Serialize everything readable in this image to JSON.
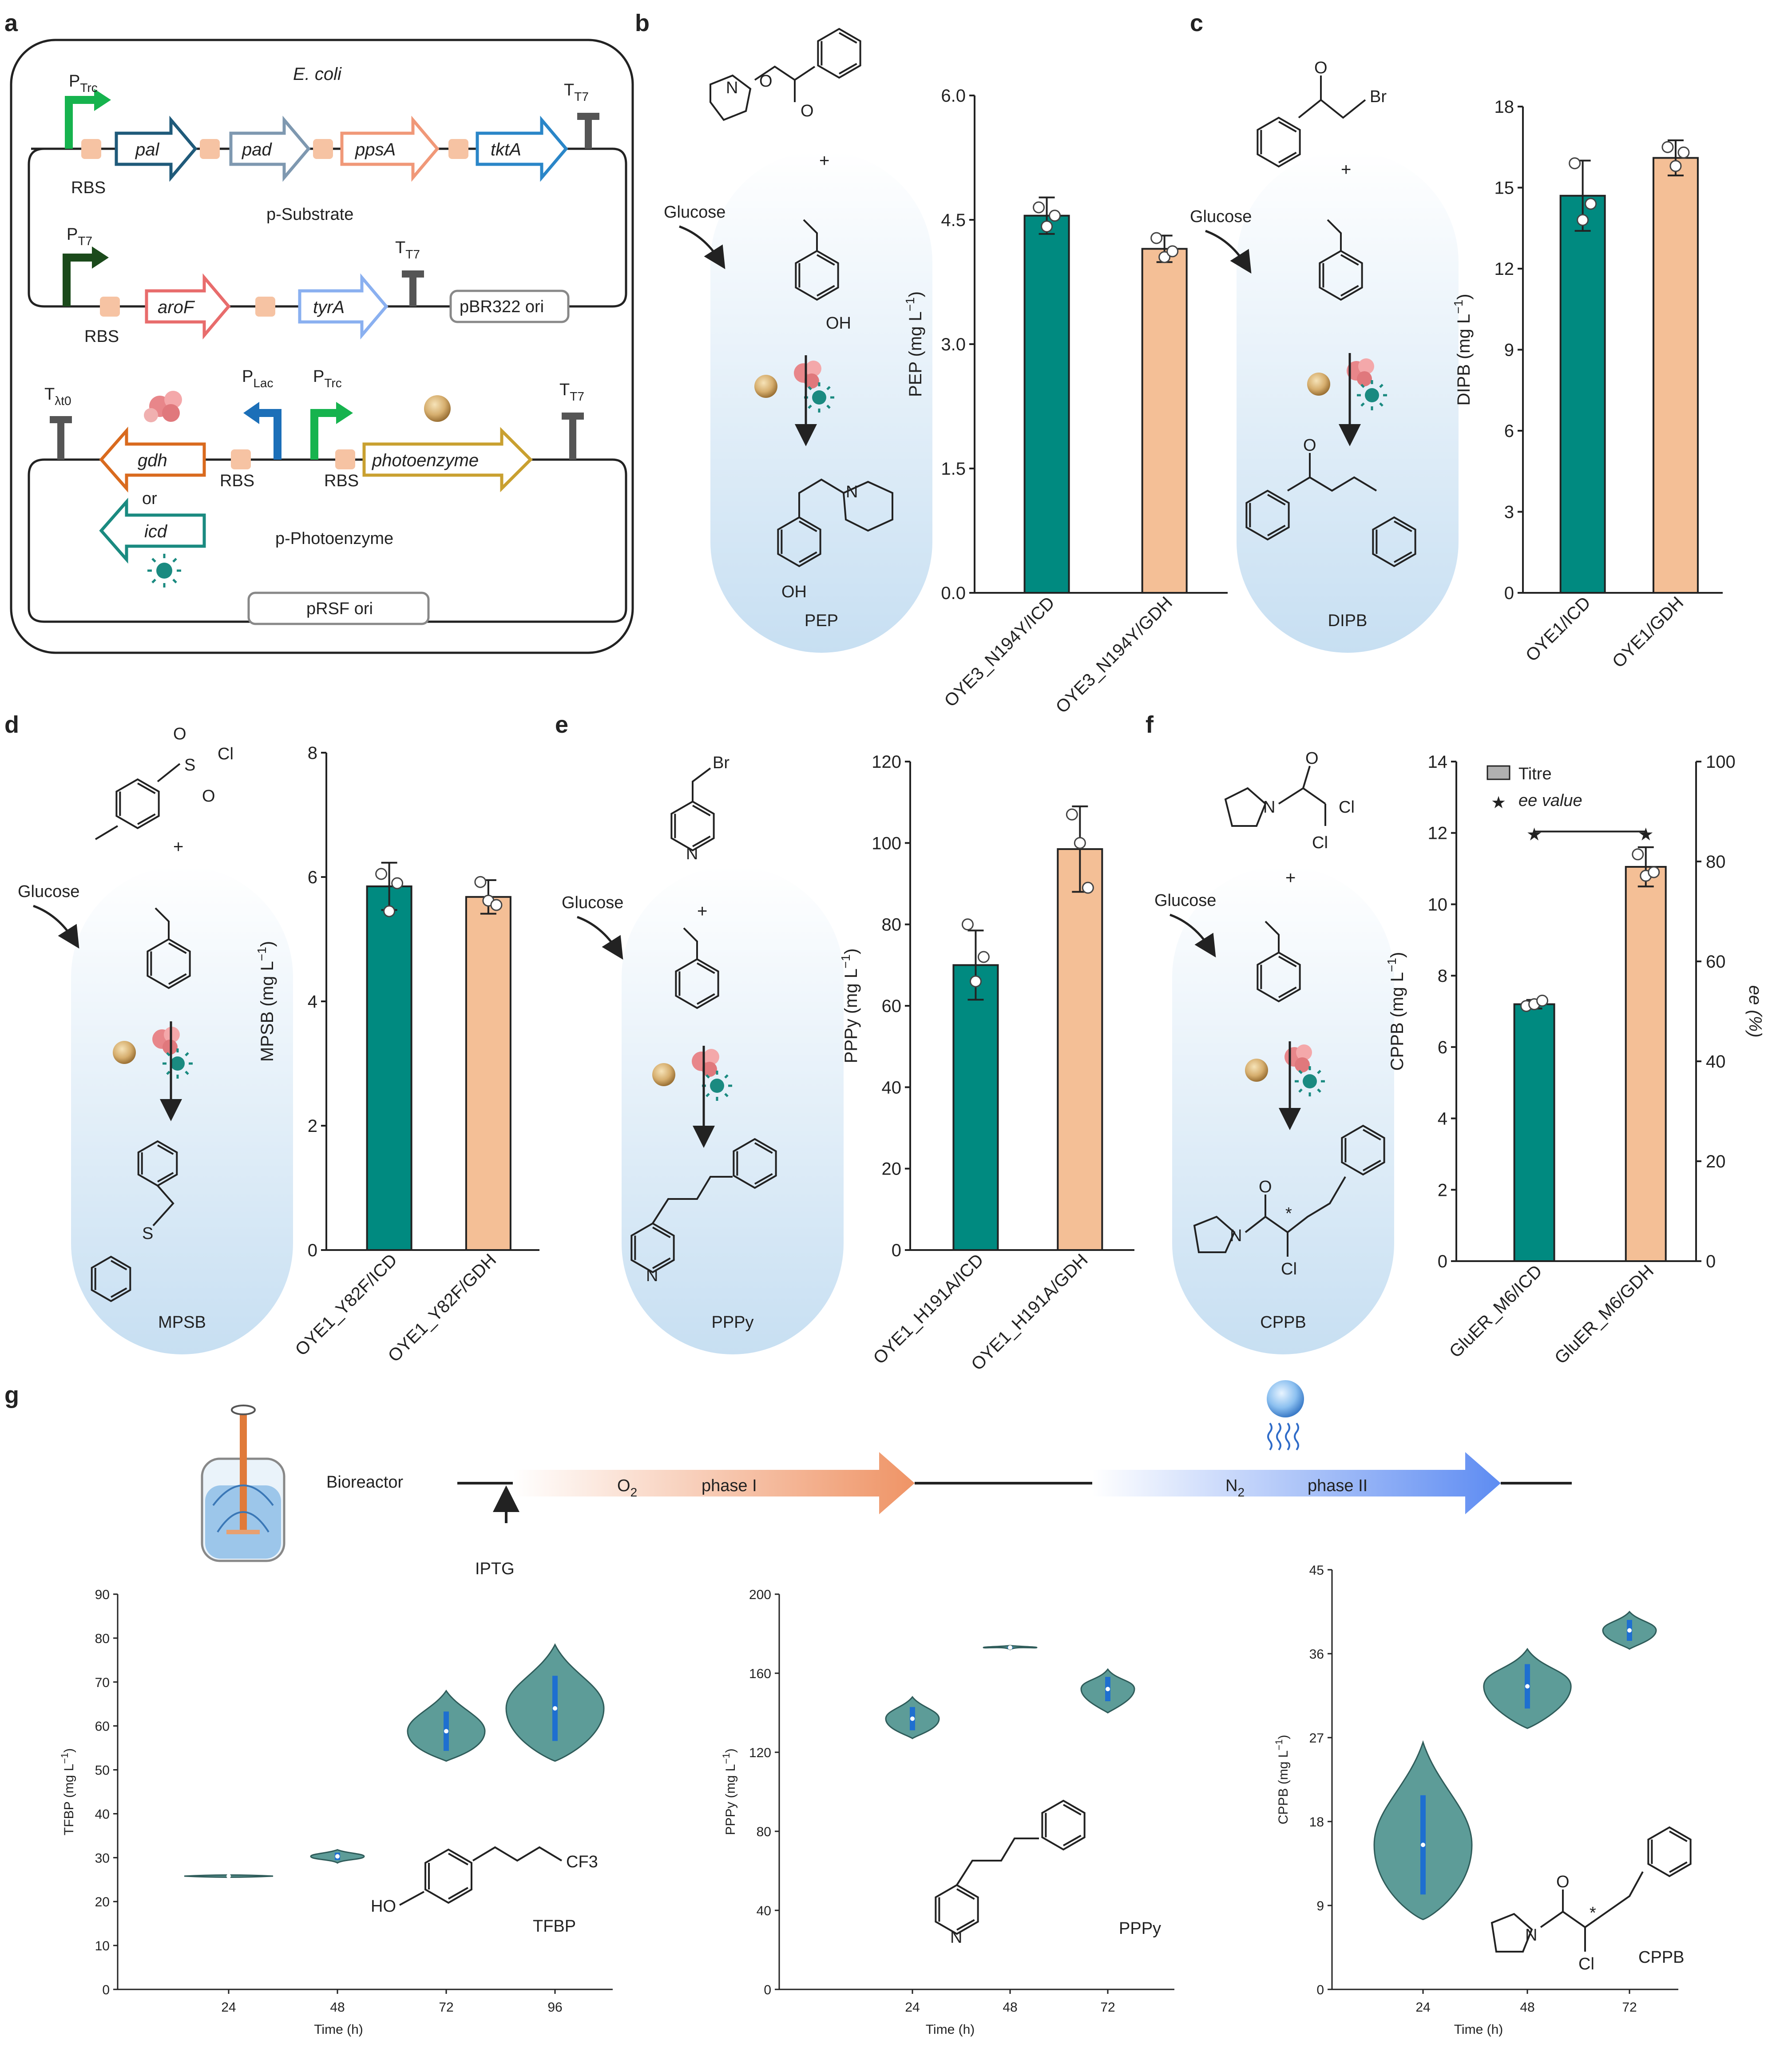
{
  "panel_labels": [
    "a",
    "b",
    "c",
    "d",
    "e",
    "f",
    "g"
  ],
  "panel_a": {
    "host": "E. coli",
    "promoters": {
      "trc": "P",
      "trc_sub": "Trc",
      "t7": "P",
      "t7_sub": "T7",
      "lac": "P",
      "lac_sub": "Lac"
    },
    "terminators": {
      "t7": "T",
      "t7_sub": "T7",
      "lambda": "T",
      "lambda_sub": "λt0"
    },
    "rbs": "RBS",
    "plasmid1": {
      "name": "p-Substrate",
      "genes_row1": [
        "pal",
        "pad",
        "ppsA",
        "tktA"
      ],
      "genes_row2": [
        "aroF",
        "tyrA"
      ],
      "ori": "pBR322 ori"
    },
    "plasmid2": {
      "name": "p-Photoenzyme",
      "genes": [
        "gdh",
        "photoenzyme",
        "icd"
      ],
      "or_text": "or",
      "ori": "pRSF ori"
    }
  },
  "common": {
    "glucose": "Glucose",
    "plus": "+",
    "ylabel_unit": "(mg L",
    "ylabel_exp": "−1",
    "ylabel_close": ")"
  },
  "colors": {
    "teal": "#008A80",
    "peach": "#F4BF96",
    "violin": "#5D9C98",
    "enzyme_gold": "#C89A52",
    "enzyme_red": "#E8868A",
    "burgundy": "#6D1A1F"
  },
  "chart_data": [
    {
      "id": "b",
      "type": "bar",
      "ylabel": "PEP",
      "product": "PEP",
      "categories": [
        "OYE3_N194Y/ICD",
        "OYE3_N194Y/GDH"
      ],
      "values": [
        4.55,
        4.15
      ],
      "errors": [
        0.22,
        0.16
      ],
      "points": [
        [
          4.65,
          4.42,
          4.55
        ],
        [
          4.28,
          4.05,
          4.12
        ]
      ],
      "ylim": [
        0,
        6
      ],
      "yticks": [
        "0.0",
        "1.5",
        "3.0",
        "4.5",
        "6.0"
      ]
    },
    {
      "id": "c",
      "type": "bar",
      "ylabel": "DIPB",
      "product": "DIPB",
      "substrate_atom": "Br",
      "categories": [
        "OYE1/ICD",
        "OYE1/GDH"
      ],
      "values": [
        14.7,
        16.1
      ],
      "errors": [
        1.3,
        0.65
      ],
      "points": [
        [
          15.9,
          13.8,
          14.4
        ],
        [
          16.5,
          15.8,
          16.3
        ]
      ],
      "ylim": [
        0,
        18
      ],
      "yticks": [
        "0",
        "3",
        "6",
        "9",
        "12",
        "15",
        "18"
      ]
    },
    {
      "id": "d",
      "type": "bar",
      "ylabel": "MPSB",
      "product": "MPSB",
      "substrate_atoms": [
        "S",
        "O",
        "O",
        "Cl"
      ],
      "categories": [
        "OYE1_Y82F/ICD",
        "OYE1_Y82F/GDH"
      ],
      "values": [
        5.85,
        5.68
      ],
      "errors": [
        0.38,
        0.27
      ],
      "points": [
        [
          6.05,
          5.45,
          5.9
        ],
        [
          5.92,
          5.62,
          5.55
        ]
      ],
      "ylim": [
        0,
        8
      ],
      "yticks": [
        "0",
        "2",
        "4",
        "6",
        "8"
      ]
    },
    {
      "id": "e",
      "type": "bar",
      "ylabel": "PPPy",
      "product": "PPPy",
      "substrate_atoms": [
        "Br",
        "N"
      ],
      "categories": [
        "OYE1_H191A/ICD",
        "OYE1_H191A/GDH"
      ],
      "values": [
        70,
        98.5
      ],
      "errors": [
        8.5,
        10.5
      ],
      "points": [
        [
          80,
          66,
          72
        ],
        [
          107,
          100,
          89
        ]
      ],
      "ylim": [
        0,
        120
      ],
      "yticks": [
        "0",
        "20",
        "40",
        "60",
        "80",
        "100",
        "120"
      ]
    },
    {
      "id": "f",
      "type": "bar",
      "ylabel": "CPPB",
      "product": "CPPB",
      "y2label": "ee (%)",
      "substrate_atoms": [
        "O",
        "N",
        "Cl",
        "Cl"
      ],
      "categories": [
        "GluER_M6/ICD",
        "GluER_M6/GDH"
      ],
      "values": [
        7.2,
        11.05
      ],
      "errors": [
        0.12,
        0.55
      ],
      "points": [
        [
          7.15,
          7.2,
          7.3
        ],
        [
          11.4,
          10.8,
          10.9
        ]
      ],
      "ee_values": [
        86,
        86
      ],
      "ylim": [
        0,
        14
      ],
      "y2lim": [
        0,
        100
      ],
      "yticks": [
        "0",
        "2",
        "4",
        "6",
        "8",
        "10",
        "12",
        "14"
      ],
      "y2ticks": [
        "0",
        "20",
        "40",
        "60",
        "80",
        "100"
      ],
      "legend": {
        "titre": "Titre",
        "ee": "ee value"
      }
    },
    {
      "id": "g1",
      "type": "violin",
      "ylabel": "TFBP",
      "xlabel": "Time (h)",
      "product": "TFBP",
      "struct_labels": [
        "HO",
        "CF3"
      ],
      "x": [
        "24",
        "48",
        "72",
        "96"
      ],
      "medians": [
        25.8,
        30.3,
        58.8,
        64.0
      ],
      "ranges": [
        [
          25.6,
          25.9
        ],
        [
          28.8,
          31.8
        ],
        [
          52.0,
          68.0
        ],
        [
          52.0,
          78.5
        ]
      ],
      "ylim": [
        0,
        90
      ],
      "yticks": [
        "0",
        "10",
        "20",
        "30",
        "40",
        "50",
        "60",
        "70",
        "80",
        "90"
      ]
    },
    {
      "id": "g2",
      "type": "violin",
      "ylabel": "PPPy",
      "xlabel": "Time (h)",
      "product": "PPPy",
      "struct_labels": [
        "N"
      ],
      "x": [
        "24",
        "48",
        "72"
      ],
      "medians": [
        137,
        173,
        152
      ],
      "ranges": [
        [
          127,
          148
        ],
        [
          172,
          174
        ],
        [
          140,
          162
        ]
      ],
      "ylim": [
        0,
        200
      ],
      "yticks": [
        "0",
        "40",
        "80",
        "120",
        "160",
        "200"
      ]
    },
    {
      "id": "g3",
      "type": "violin",
      "ylabel": "CPPB",
      "xlabel": "Time (h)",
      "product": "CPPB",
      "struct_labels": [
        "O",
        "N",
        "Cl"
      ],
      "x": [
        "24",
        "48",
        "72"
      ],
      "medians": [
        15.5,
        32.5,
        38.5
      ],
      "ranges": [
        [
          7.5,
          26.5
        ],
        [
          28.0,
          36.5
        ],
        [
          36.5,
          40.5
        ]
      ],
      "ylim": [
        0,
        45
      ],
      "yticks": [
        "0",
        "9",
        "18",
        "27",
        "36",
        "45"
      ]
    }
  ],
  "panel_g_process": {
    "bioreactor": "Bioreactor",
    "inducer": "IPTG",
    "phase1_gas": "O",
    "phase1_gas_sub": "2",
    "phase1": "phase I",
    "phase2_gas": "N",
    "phase2_gas_sub": "2",
    "phase2": "phase II"
  }
}
